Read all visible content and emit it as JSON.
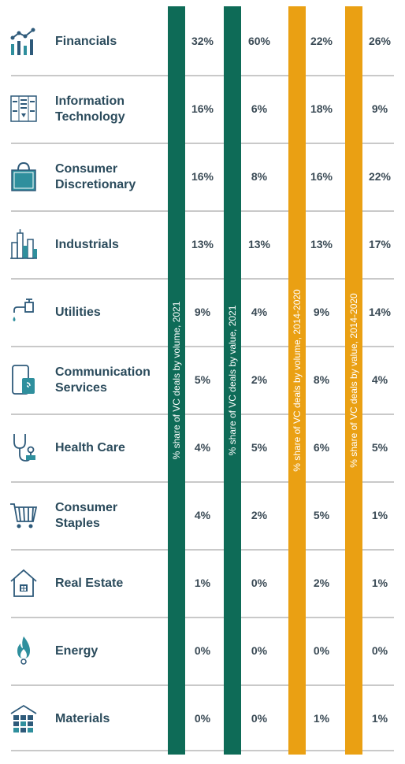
{
  "colors": {
    "green_bar": "#0e6b57",
    "orange_bar": "#eaa013",
    "icon": "#2e5a7a",
    "icon_fill": "#2f8f9d",
    "text": "#2b4b5c",
    "divider": "#c9c9c9"
  },
  "chart_data": {
    "type": "table",
    "columns": [
      {
        "name": "% share of VC deals by volume, 2021",
        "color": "#0e6b57"
      },
      {
        "name": "% share of VC deals by value, 2021",
        "color": "#0e6b57"
      },
      {
        "name": "% share of VC deals by volume, 2014-2020",
        "color": "#eaa013"
      },
      {
        "name": "% share of VC deals by value, 2014-2020",
        "color": "#eaa013"
      }
    ],
    "rows": [
      {
        "sector": "Financials",
        "icon": "financials-chart-icon",
        "values": [
          "32%",
          "60%",
          "22%",
          "26%"
        ]
      },
      {
        "sector": "Information\nTechnology",
        "icon": "server-icon",
        "values": [
          "16%",
          "6%",
          "18%",
          "9%"
        ]
      },
      {
        "sector": "Consumer\nDiscretionary",
        "icon": "shopping-bag-icon",
        "values": [
          "16%",
          "8%",
          "16%",
          "22%"
        ]
      },
      {
        "sector": "Industrials",
        "icon": "city-buildings-icon",
        "values": [
          "13%",
          "13%",
          "13%",
          "17%"
        ]
      },
      {
        "sector": "Utilities",
        "icon": "water-tap-icon",
        "values": [
          "9%",
          "4%",
          "9%",
          "14%"
        ]
      },
      {
        "sector": "Communication\nServices",
        "icon": "mobile-phone-icon",
        "values": [
          "5%",
          "2%",
          "8%",
          "4%"
        ]
      },
      {
        "sector": "Health Care",
        "icon": "stethoscope-icon",
        "values": [
          "4%",
          "5%",
          "6%",
          "5%"
        ]
      },
      {
        "sector": "Consumer\nStaples",
        "icon": "shopping-cart-icon",
        "values": [
          "4%",
          "2%",
          "5%",
          "1%"
        ]
      },
      {
        "sector": "Real Estate",
        "icon": "house-icon",
        "values": [
          "1%",
          "0%",
          "2%",
          "1%"
        ]
      },
      {
        "sector": "Energy",
        "icon": "flame-icon",
        "values": [
          "0%",
          "0%",
          "0%",
          "0%"
        ]
      },
      {
        "sector": "Materials",
        "icon": "materials-blocks-icon",
        "values": [
          "0%",
          "0%",
          "1%",
          "1%"
        ]
      }
    ]
  }
}
